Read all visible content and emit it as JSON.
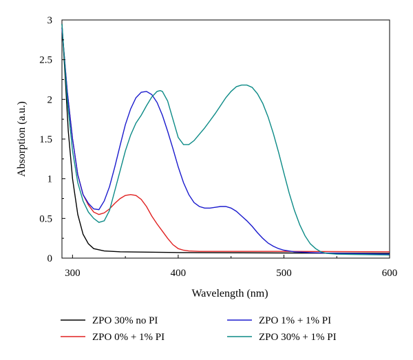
{
  "chart_data": {
    "type": "line",
    "title": "",
    "xlabel": "Wavelength (nm)",
    "ylabel": "Absorption (a.u.)",
    "xlim": [
      290,
      600
    ],
    "ylim": [
      0,
      3
    ],
    "xticks": [
      300,
      400,
      500,
      600
    ],
    "yticks": [
      0,
      0.5,
      1,
      1.5,
      2,
      2.5,
      3
    ],
    "xtick_labels": [
      "300",
      "400",
      "500",
      "600"
    ],
    "ytick_labels": [
      "0",
      "0.5",
      "1",
      "1.5",
      "2",
      "2.5",
      "3"
    ],
    "grid": false,
    "legend_position": "bottom",
    "series": [
      {
        "name": "ZPO 30% no PI",
        "color": "#000000",
        "points": [
          [
            290,
            2.95
          ],
          [
            293,
            2.3
          ],
          [
            296,
            1.6
          ],
          [
            300,
            1.0
          ],
          [
            305,
            0.55
          ],
          [
            310,
            0.3
          ],
          [
            315,
            0.18
          ],
          [
            320,
            0.12
          ],
          [
            330,
            0.09
          ],
          [
            345,
            0.08
          ],
          [
            400,
            0.07
          ],
          [
            500,
            0.065
          ],
          [
            600,
            0.06
          ]
        ]
      },
      {
        "name": "ZPO 0% + 1% PI",
        "color": "#e02020",
        "points": [
          [
            290,
            2.9
          ],
          [
            295,
            2.1
          ],
          [
            300,
            1.5
          ],
          [
            305,
            1.05
          ],
          [
            310,
            0.8
          ],
          [
            315,
            0.67
          ],
          [
            320,
            0.58
          ],
          [
            325,
            0.55
          ],
          [
            330,
            0.57
          ],
          [
            335,
            0.62
          ],
          [
            340,
            0.69
          ],
          [
            345,
            0.75
          ],
          [
            350,
            0.79
          ],
          [
            355,
            0.8
          ],
          [
            360,
            0.79
          ],
          [
            365,
            0.74
          ],
          [
            370,
            0.65
          ],
          [
            375,
            0.53
          ],
          [
            380,
            0.43
          ],
          [
            385,
            0.34
          ],
          [
            390,
            0.25
          ],
          [
            395,
            0.17
          ],
          [
            400,
            0.12
          ],
          [
            405,
            0.1
          ],
          [
            410,
            0.09
          ],
          [
            420,
            0.085
          ],
          [
            500,
            0.085
          ],
          [
            600,
            0.08
          ]
        ]
      },
      {
        "name": "ZPO 1% + 1% PI",
        "color": "#1a1acd",
        "points": [
          [
            290,
            2.9
          ],
          [
            295,
            2.1
          ],
          [
            300,
            1.5
          ],
          [
            305,
            1.05
          ],
          [
            310,
            0.8
          ],
          [
            315,
            0.69
          ],
          [
            320,
            0.62
          ],
          [
            325,
            0.61
          ],
          [
            330,
            0.72
          ],
          [
            335,
            0.9
          ],
          [
            340,
            1.15
          ],
          [
            345,
            1.42
          ],
          [
            350,
            1.68
          ],
          [
            355,
            1.88
          ],
          [
            360,
            2.02
          ],
          [
            365,
            2.09
          ],
          [
            370,
            2.1
          ],
          [
            375,
            2.06
          ],
          [
            380,
            1.96
          ],
          [
            385,
            1.8
          ],
          [
            390,
            1.6
          ],
          [
            395,
            1.38
          ],
          [
            400,
            1.15
          ],
          [
            405,
            0.95
          ],
          [
            410,
            0.8
          ],
          [
            415,
            0.7
          ],
          [
            420,
            0.65
          ],
          [
            425,
            0.63
          ],
          [
            430,
            0.63
          ],
          [
            435,
            0.64
          ],
          [
            440,
            0.65
          ],
          [
            445,
            0.65
          ],
          [
            450,
            0.63
          ],
          [
            455,
            0.59
          ],
          [
            460,
            0.53
          ],
          [
            465,
            0.47
          ],
          [
            470,
            0.4
          ],
          [
            475,
            0.32
          ],
          [
            480,
            0.25
          ],
          [
            485,
            0.19
          ],
          [
            490,
            0.15
          ],
          [
            495,
            0.12
          ],
          [
            500,
            0.1
          ],
          [
            510,
            0.08
          ],
          [
            525,
            0.07
          ],
          [
            550,
            0.06
          ],
          [
            600,
            0.05
          ]
        ]
      },
      {
        "name": "ZPO 30% + 1% PI",
        "color": "#0b8a86",
        "points": [
          [
            290,
            2.95
          ],
          [
            295,
            2.0
          ],
          [
            300,
            1.35
          ],
          [
            305,
            0.95
          ],
          [
            310,
            0.72
          ],
          [
            315,
            0.58
          ],
          [
            320,
            0.5
          ],
          [
            325,
            0.45
          ],
          [
            330,
            0.47
          ],
          [
            335,
            0.6
          ],
          [
            340,
            0.85
          ],
          [
            345,
            1.1
          ],
          [
            350,
            1.35
          ],
          [
            355,
            1.55
          ],
          [
            360,
            1.7
          ],
          [
            365,
            1.8
          ],
          [
            370,
            1.92
          ],
          [
            375,
            2.03
          ],
          [
            380,
            2.1
          ],
          [
            383,
            2.11
          ],
          [
            385,
            2.1
          ],
          [
            390,
            1.98
          ],
          [
            395,
            1.75
          ],
          [
            400,
            1.52
          ],
          [
            405,
            1.43
          ],
          [
            410,
            1.43
          ],
          [
            415,
            1.48
          ],
          [
            420,
            1.56
          ],
          [
            425,
            1.64
          ],
          [
            430,
            1.73
          ],
          [
            435,
            1.82
          ],
          [
            440,
            1.92
          ],
          [
            445,
            2.02
          ],
          [
            450,
            2.1
          ],
          [
            455,
            2.16
          ],
          [
            460,
            2.18
          ],
          [
            465,
            2.18
          ],
          [
            470,
            2.15
          ],
          [
            475,
            2.07
          ],
          [
            480,
            1.95
          ],
          [
            485,
            1.78
          ],
          [
            490,
            1.57
          ],
          [
            495,
            1.33
          ],
          [
            500,
            1.07
          ],
          [
            505,
            0.82
          ],
          [
            510,
            0.6
          ],
          [
            515,
            0.42
          ],
          [
            520,
            0.28
          ],
          [
            525,
            0.18
          ],
          [
            530,
            0.12
          ],
          [
            535,
            0.08
          ],
          [
            540,
            0.06
          ],
          [
            550,
            0.05
          ],
          [
            600,
            0.04
          ]
        ]
      }
    ]
  }
}
